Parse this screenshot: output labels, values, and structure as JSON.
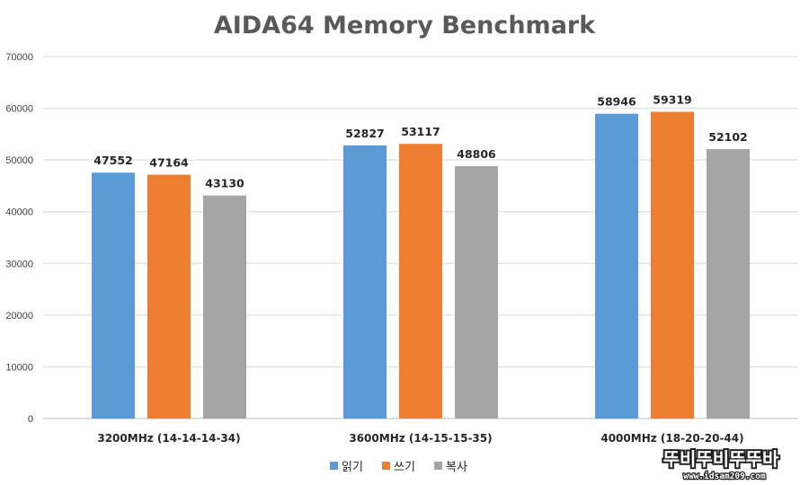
{
  "chart_data": {
    "type": "bar",
    "title": "AIDA64 Memory Benchmark",
    "xlabel": "",
    "ylabel": "",
    "categories": [
      "3200MHz (14-14-14-34)",
      "3600MHz (14-15-15-35)",
      "4000MHz (18-20-20-44)"
    ],
    "series": [
      {
        "name": "읽기",
        "color": "#5B9BD5",
        "values": [
          47552,
          52827,
          58946
        ]
      },
      {
        "name": "쓰기",
        "color": "#ED7D31",
        "values": [
          47164,
          53117,
          59319
        ]
      },
      {
        "name": "복사",
        "color": "#A5A5A5",
        "values": [
          43130,
          48806,
          52102
        ]
      }
    ],
    "ylim": [
      0,
      70000
    ],
    "yticks": [
      0,
      10000,
      20000,
      30000,
      40000,
      50000,
      60000,
      70000
    ],
    "grid": true,
    "legend": "bottom",
    "data_labels": true
  },
  "watermark": {
    "text": "뚜비뚜비뚜뚜바",
    "url": "www.idsam209.com"
  }
}
